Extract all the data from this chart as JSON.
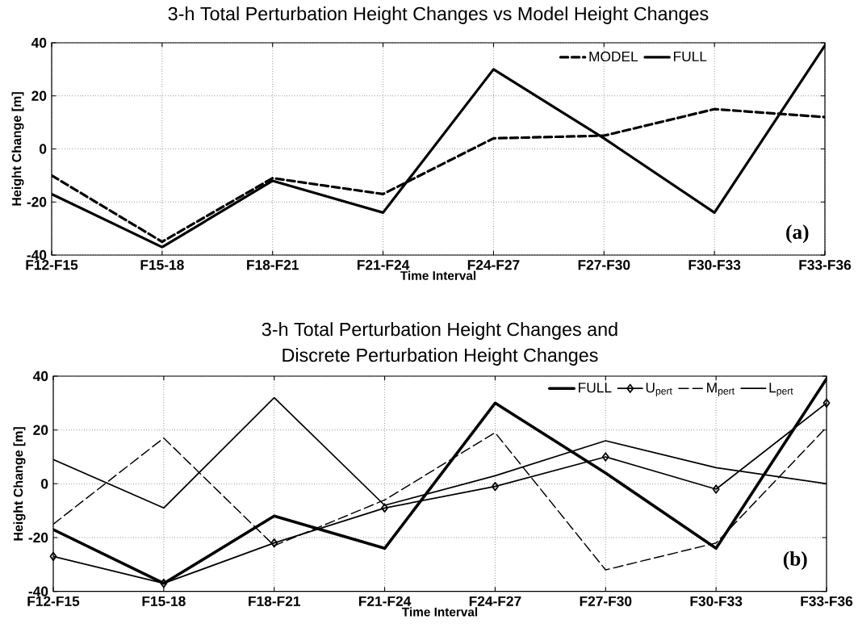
{
  "chart_data": [
    {
      "type": "line",
      "title": "3-h Total Perturbation Height Changes vs Model Height Changes",
      "xlabel": "Time Interval",
      "ylabel": "Height Change [m]",
      "categories": [
        "F12-F15",
        "F15-18",
        "F18-F21",
        "F21-F24",
        "F24-F27",
        "F27-F30",
        "F30-F33",
        "F33-F36"
      ],
      "series": [
        {
          "name": "MODEL",
          "color": "#000000",
          "line_style": "dashed",
          "values": [
            -10,
            -35,
            -11,
            -17,
            4,
            5,
            15,
            12
          ]
        },
        {
          "name": "FULL",
          "color": "#000000",
          "line_style": "solid",
          "values": [
            -17,
            -37,
            -12,
            -24,
            30,
            4,
            -24,
            39
          ]
        }
      ],
      "ylim": [
        -40,
        40
      ],
      "yticks": [
        -40,
        -20,
        0,
        20,
        40
      ],
      "grid": true,
      "legend": "top right",
      "annotations": [
        "(a)"
      ]
    },
    {
      "type": "line",
      "title": "3-h Total Perturbation Height Changes and Discrete Perturbation Height Changes",
      "xlabel": "Time Interval",
      "ylabel": "Height Change [m]",
      "categories": [
        "F12-F15",
        "F15-18",
        "F18-F21",
        "F21-F24",
        "F24-F27",
        "F27-F30",
        "F30-F33",
        "F33-F36"
      ],
      "series": [
        {
          "name": "FULL",
          "color": "#000000",
          "line_style": "solid",
          "values": [
            -17,
            -37,
            -12,
            -24,
            30,
            4,
            -24,
            39
          ]
        },
        {
          "name": "U$_{pert}$",
          "color": "#000000",
          "line_style": "solid",
          "marker": "diamond",
          "values": [
            -27,
            -37,
            -22,
            -9,
            -1,
            10,
            -2,
            30
          ]
        },
        {
          "name": "M$_{pert}$",
          "color": "#000000",
          "line_style": "dashed",
          "values": [
            -15,
            17,
            -23,
            -6,
            19,
            -32,
            -22,
            21
          ]
        },
        {
          "name": "L$_{pert}$",
          "color": "#000000",
          "line_style": "solid",
          "values": [
            9,
            -9,
            32,
            -8,
            3,
            16,
            6,
            0
          ]
        }
      ],
      "ylim": [
        -40,
        40
      ],
      "yticks": [
        -40,
        -20,
        0,
        20,
        40
      ],
      "grid": true,
      "legend": "top right",
      "annotations": [
        "(b)"
      ]
    }
  ]
}
